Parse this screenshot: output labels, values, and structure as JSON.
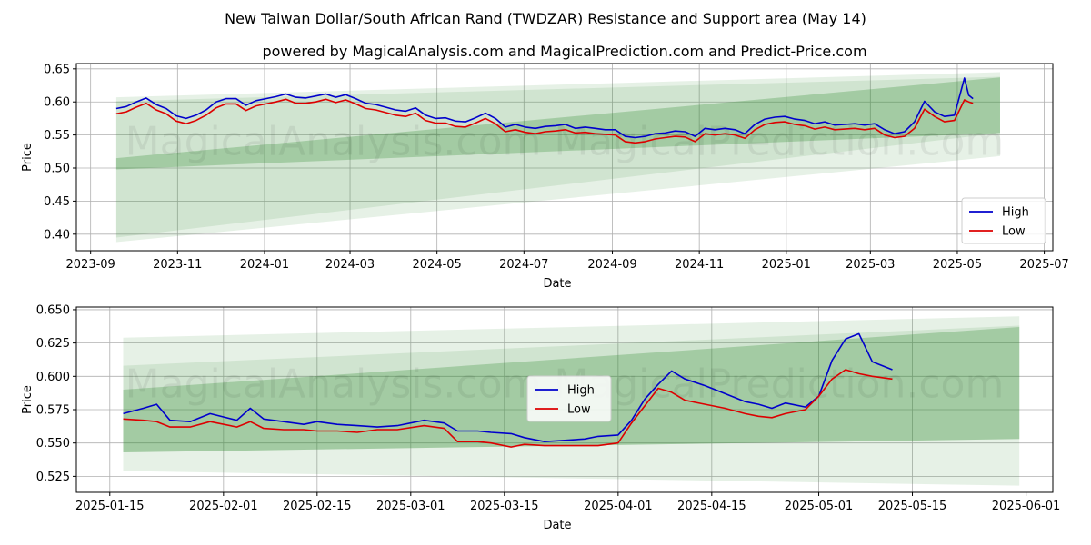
{
  "title": "New Taiwan Dollar/South African Rand (TWDZAR) Resistance and Support area (May 14)",
  "subtitle": "powered by MagicalAnalysis.com and MagicalPrediction.com and Predict-Price.com",
  "watermark": "MagicalAnalysis.com    MagicalPrediction.com",
  "colors": {
    "high": "#0000cc",
    "low": "#dd0000",
    "band": "#2e8b2e"
  },
  "chart_data": [
    {
      "type": "line",
      "xlabel": "Date",
      "ylabel": "Price",
      "xlim": [
        "2023-08-22",
        "2025-07-07"
      ],
      "ylim": [
        0.375,
        0.658
      ],
      "x_ticks": [
        "2023-09",
        "2023-11",
        "2024-01",
        "2024-03",
        "2024-05",
        "2024-07",
        "2024-09",
        "2024-11",
        "2025-01",
        "2025-03",
        "2025-05",
        "2025-07"
      ],
      "y_ticks": [
        "0.40",
        "0.45",
        "0.50",
        "0.55",
        "0.60",
        "0.65"
      ],
      "grid": true,
      "legend": "bottom-right",
      "series": [
        {
          "name": "High",
          "x": [
            "2023-09-19",
            "2023-09-26",
            "2023-10-03",
            "2023-10-10",
            "2023-10-17",
            "2023-10-24",
            "2023-10-31",
            "2023-11-07",
            "2023-11-14",
            "2023-11-21",
            "2023-11-28",
            "2023-12-05",
            "2023-12-12",
            "2023-12-19",
            "2023-12-26",
            "2024-01-02",
            "2024-01-09",
            "2024-01-16",
            "2024-01-23",
            "2024-01-30",
            "2024-02-06",
            "2024-02-13",
            "2024-02-20",
            "2024-02-27",
            "2024-03-05",
            "2024-03-12",
            "2024-03-19",
            "2024-03-26",
            "2024-04-02",
            "2024-04-09",
            "2024-04-16",
            "2024-04-23",
            "2024-04-30",
            "2024-05-07",
            "2024-05-14",
            "2024-05-21",
            "2024-05-28",
            "2024-06-04",
            "2024-06-11",
            "2024-06-18",
            "2024-06-25",
            "2024-07-02",
            "2024-07-09",
            "2024-07-16",
            "2024-07-23",
            "2024-07-30",
            "2024-08-06",
            "2024-08-13",
            "2024-08-20",
            "2024-08-27",
            "2024-09-03",
            "2024-09-10",
            "2024-09-17",
            "2024-09-24",
            "2024-10-01",
            "2024-10-08",
            "2024-10-15",
            "2024-10-22",
            "2024-10-29",
            "2024-11-05",
            "2024-11-12",
            "2024-11-19",
            "2024-11-26",
            "2024-12-03",
            "2024-12-10",
            "2024-12-17",
            "2024-12-24",
            "2024-12-31",
            "2025-01-07",
            "2025-01-14",
            "2025-01-21",
            "2025-01-28",
            "2025-02-04",
            "2025-02-11",
            "2025-02-18",
            "2025-02-25",
            "2025-03-04",
            "2025-03-11",
            "2025-03-18",
            "2025-03-25",
            "2025-04-01",
            "2025-04-08",
            "2025-04-15",
            "2025-04-22",
            "2025-04-29",
            "2025-05-06",
            "2025-05-09",
            "2025-05-12"
          ],
          "values": [
            0.59,
            0.593,
            0.6,
            0.606,
            0.596,
            0.59,
            0.579,
            0.575,
            0.58,
            0.588,
            0.6,
            0.605,
            0.605,
            0.595,
            0.602,
            0.605,
            0.608,
            0.612,
            0.607,
            0.606,
            0.609,
            0.612,
            0.607,
            0.611,
            0.605,
            0.598,
            0.596,
            0.592,
            0.588,
            0.586,
            0.591,
            0.58,
            0.575,
            0.576,
            0.571,
            0.57,
            0.576,
            0.583,
            0.575,
            0.562,
            0.566,
            0.562,
            0.56,
            0.563,
            0.564,
            0.566,
            0.56,
            0.562,
            0.56,
            0.558,
            0.558,
            0.548,
            0.546,
            0.548,
            0.552,
            0.553,
            0.556,
            0.555,
            0.548,
            0.56,
            0.558,
            0.56,
            0.558,
            0.552,
            0.566,
            0.574,
            0.577,
            0.578,
            0.574,
            0.572,
            0.567,
            0.57,
            0.565,
            0.566,
            0.567,
            0.565,
            0.567,
            0.558,
            0.552,
            0.555,
            0.57,
            0.601,
            0.585,
            0.578,
            0.58,
            0.636,
            0.61,
            0.605
          ]
        },
        {
          "name": "Low",
          "x": [
            "2023-09-19",
            "2023-09-26",
            "2023-10-03",
            "2023-10-10",
            "2023-10-17",
            "2023-10-24",
            "2023-10-31",
            "2023-11-07",
            "2023-11-14",
            "2023-11-21",
            "2023-11-28",
            "2023-12-05",
            "2023-12-12",
            "2023-12-19",
            "2023-12-26",
            "2024-01-02",
            "2024-01-09",
            "2024-01-16",
            "2024-01-23",
            "2024-01-30",
            "2024-02-06",
            "2024-02-13",
            "2024-02-20",
            "2024-02-27",
            "2024-03-05",
            "2024-03-12",
            "2024-03-19",
            "2024-03-26",
            "2024-04-02",
            "2024-04-09",
            "2024-04-16",
            "2024-04-23",
            "2024-04-30",
            "2024-05-07",
            "2024-05-14",
            "2024-05-21",
            "2024-05-28",
            "2024-06-04",
            "2024-06-11",
            "2024-06-18",
            "2024-06-25",
            "2024-07-02",
            "2024-07-09",
            "2024-07-16",
            "2024-07-23",
            "2024-07-30",
            "2024-08-06",
            "2024-08-13",
            "2024-08-20",
            "2024-08-27",
            "2024-09-03",
            "2024-09-10",
            "2024-09-17",
            "2024-09-24",
            "2024-10-01",
            "2024-10-08",
            "2024-10-15",
            "2024-10-22",
            "2024-10-29",
            "2024-11-05",
            "2024-11-12",
            "2024-11-19",
            "2024-11-26",
            "2024-12-03",
            "2024-12-10",
            "2024-12-17",
            "2024-12-24",
            "2024-12-31",
            "2025-01-07",
            "2025-01-14",
            "2025-01-21",
            "2025-01-28",
            "2025-02-04",
            "2025-02-11",
            "2025-02-18",
            "2025-02-25",
            "2025-03-04",
            "2025-03-11",
            "2025-03-18",
            "2025-03-25",
            "2025-04-01",
            "2025-04-08",
            "2025-04-15",
            "2025-04-22",
            "2025-04-29",
            "2025-05-06",
            "2025-05-09",
            "2025-05-12"
          ],
          "values": [
            0.582,
            0.585,
            0.592,
            0.598,
            0.588,
            0.582,
            0.571,
            0.567,
            0.572,
            0.58,
            0.591,
            0.597,
            0.597,
            0.587,
            0.594,
            0.597,
            0.6,
            0.604,
            0.598,
            0.598,
            0.6,
            0.604,
            0.599,
            0.603,
            0.597,
            0.59,
            0.588,
            0.584,
            0.58,
            0.578,
            0.583,
            0.572,
            0.568,
            0.568,
            0.563,
            0.562,
            0.568,
            0.575,
            0.567,
            0.555,
            0.558,
            0.554,
            0.552,
            0.555,
            0.556,
            0.558,
            0.553,
            0.554,
            0.552,
            0.551,
            0.55,
            0.54,
            0.538,
            0.54,
            0.544,
            0.546,
            0.548,
            0.547,
            0.54,
            0.552,
            0.55,
            0.552,
            0.55,
            0.545,
            0.558,
            0.566,
            0.569,
            0.57,
            0.566,
            0.564,
            0.559,
            0.562,
            0.558,
            0.559,
            0.56,
            0.558,
            0.56,
            0.55,
            0.546,
            0.548,
            0.56,
            0.589,
            0.578,
            0.57,
            0.572,
            0.603,
            0.6,
            0.598
          ]
        }
      ],
      "bands": [
        {
          "x": [
            "2023-09-19",
            "2025-05-31"
          ],
          "upper": [
            0.607,
            0.645
          ],
          "lower": [
            0.388,
            0.518
          ]
        },
        {
          "x": [
            "2023-09-19",
            "2025-05-31"
          ],
          "upper": [
            0.601,
            0.638
          ],
          "lower": [
            0.395,
            0.553
          ]
        },
        {
          "x": [
            "2023-09-19",
            "2025-05-31"
          ],
          "upper": [
            0.515,
            0.637
          ],
          "lower": [
            0.498,
            0.553
          ]
        }
      ]
    },
    {
      "type": "line",
      "xlabel": "Date",
      "ylabel": "Price",
      "xlim": [
        "2025-01-10",
        "2025-06-05"
      ],
      "ylim": [
        0.513,
        0.652
      ],
      "x_ticks": [
        "2025-01-15",
        "2025-02-01",
        "2025-02-15",
        "2025-03-01",
        "2025-03-15",
        "2025-04-01",
        "2025-04-15",
        "2025-05-01",
        "2025-05-15",
        "2025-06-01"
      ],
      "y_ticks": [
        "0.525",
        "0.550",
        "0.575",
        "0.600",
        "0.625",
        "0.650"
      ],
      "grid": true,
      "legend": "center",
      "series": [
        {
          "name": "High",
          "x": [
            "2025-01-17",
            "2025-01-20",
            "2025-01-22",
            "2025-01-24",
            "2025-01-27",
            "2025-01-30",
            "2025-02-03",
            "2025-02-05",
            "2025-02-07",
            "2025-02-10",
            "2025-02-13",
            "2025-02-15",
            "2025-02-18",
            "2025-02-21",
            "2025-02-24",
            "2025-02-27",
            "2025-03-03",
            "2025-03-06",
            "2025-03-08",
            "2025-03-11",
            "2025-03-13",
            "2025-03-16",
            "2025-03-18",
            "2025-03-21",
            "2025-03-24",
            "2025-03-27",
            "2025-03-29",
            "2025-04-01",
            "2025-04-03",
            "2025-04-05",
            "2025-04-07",
            "2025-04-09",
            "2025-04-11",
            "2025-04-14",
            "2025-04-17",
            "2025-04-20",
            "2025-04-22",
            "2025-04-24",
            "2025-04-26",
            "2025-04-29",
            "2025-05-01",
            "2025-05-03",
            "2025-05-05",
            "2025-05-07",
            "2025-05-09",
            "2025-05-12"
          ],
          "values": [
            0.572,
            0.576,
            0.579,
            0.567,
            0.566,
            0.572,
            0.567,
            0.576,
            0.568,
            0.566,
            0.564,
            0.566,
            0.564,
            0.563,
            0.562,
            0.563,
            0.567,
            0.565,
            0.559,
            0.559,
            0.558,
            0.557,
            0.554,
            0.551,
            0.552,
            0.553,
            0.555,
            0.556,
            0.567,
            0.583,
            0.594,
            0.604,
            0.598,
            0.593,
            0.587,
            0.581,
            0.579,
            0.576,
            0.58,
            0.577,
            0.585,
            0.612,
            0.628,
            0.632,
            0.611,
            0.605
          ]
        },
        {
          "name": "Low",
          "x": [
            "2025-01-17",
            "2025-01-20",
            "2025-01-22",
            "2025-01-24",
            "2025-01-27",
            "2025-01-30",
            "2025-02-03",
            "2025-02-05",
            "2025-02-07",
            "2025-02-10",
            "2025-02-13",
            "2025-02-15",
            "2025-02-18",
            "2025-02-21",
            "2025-02-24",
            "2025-02-27",
            "2025-03-03",
            "2025-03-06",
            "2025-03-08",
            "2025-03-11",
            "2025-03-13",
            "2025-03-16",
            "2025-03-18",
            "2025-03-21",
            "2025-03-24",
            "2025-03-27",
            "2025-03-29",
            "2025-04-01",
            "2025-04-03",
            "2025-04-05",
            "2025-04-07",
            "2025-04-09",
            "2025-04-11",
            "2025-04-14",
            "2025-04-17",
            "2025-04-20",
            "2025-04-22",
            "2025-04-24",
            "2025-04-26",
            "2025-04-29",
            "2025-05-01",
            "2025-05-03",
            "2025-05-05",
            "2025-05-07",
            "2025-05-09",
            "2025-05-12"
          ],
          "values": [
            0.568,
            0.567,
            0.566,
            0.562,
            0.562,
            0.566,
            0.562,
            0.566,
            0.561,
            0.56,
            0.56,
            0.559,
            0.559,
            0.558,
            0.56,
            0.56,
            0.563,
            0.561,
            0.551,
            0.551,
            0.55,
            0.547,
            0.549,
            0.548,
            0.548,
            0.548,
            0.548,
            0.55,
            0.565,
            0.578,
            0.591,
            0.588,
            0.582,
            0.579,
            0.576,
            0.572,
            0.57,
            0.569,
            0.572,
            0.575,
            0.585,
            0.598,
            0.605,
            0.602,
            0.6,
            0.598
          ]
        }
      ],
      "bands": [
        {
          "x": [
            "2025-01-17",
            "2025-05-31"
          ],
          "upper": [
            0.629,
            0.645
          ],
          "lower": [
            0.529,
            0.518
          ]
        },
        {
          "x": [
            "2025-01-17",
            "2025-05-31"
          ],
          "upper": [
            0.608,
            0.638
          ],
          "lower": [
            0.543,
            0.553
          ]
        },
        {
          "x": [
            "2025-01-17",
            "2025-05-31"
          ],
          "upper": [
            0.59,
            0.637
          ],
          "lower": [
            0.543,
            0.553
          ]
        }
      ]
    }
  ]
}
